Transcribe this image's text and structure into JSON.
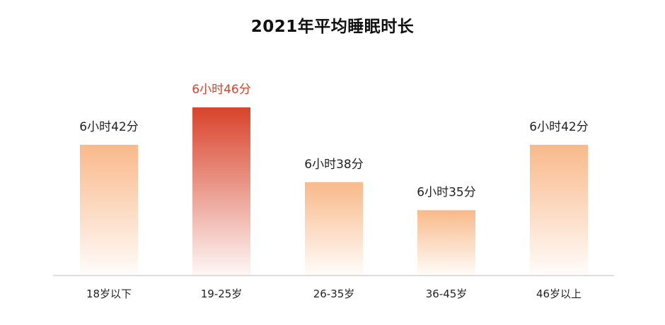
{
  "chart_data": {
    "type": "bar",
    "title": "2021年平均睡眠时长",
    "categories": [
      "18岁以下",
      "19-25岁",
      "26-35岁",
      "36-45岁",
      "46岁以上"
    ],
    "values": [
      402,
      406,
      398,
      395,
      402
    ],
    "value_labels": [
      "6小时42分",
      "6小时46分",
      "6小时38分",
      "6小时35分",
      "6小时42分"
    ],
    "highlight_index": 1,
    "ylim": [
      388,
      406
    ],
    "grid": false,
    "colors": {
      "bar": "#f9b98a",
      "highlight_bar": "#d9432b",
      "highlight_label": "#d5432b",
      "axis": "#bdbdbd",
      "text": "#222222"
    }
  }
}
